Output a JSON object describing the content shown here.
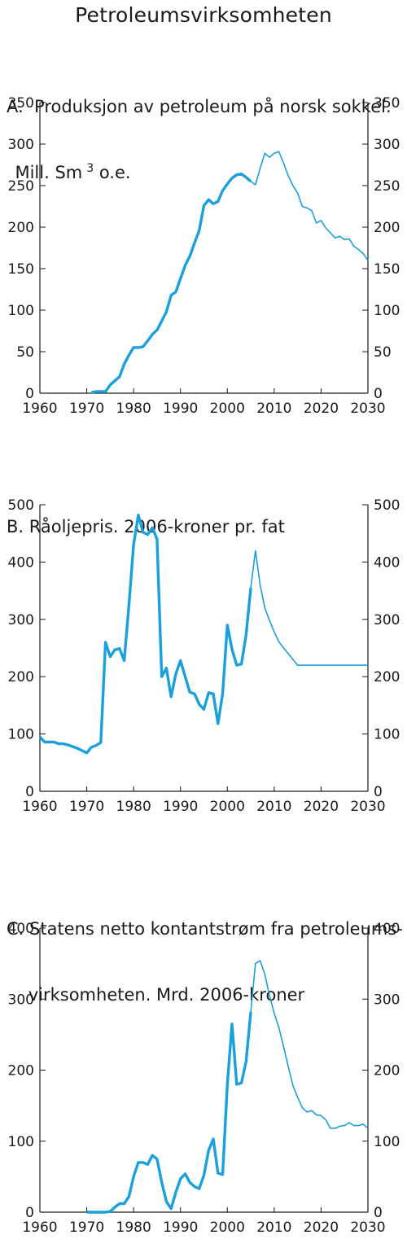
{
  "figure": {
    "title": "Petroleumsvirksomheten"
  },
  "colors": {
    "series": "#1aa0dc",
    "axis": "#1a1a1a"
  },
  "chart_data": [
    {
      "type": "line",
      "title_line1": "A.  Produksjon av petroleum på norsk sokkel.",
      "title_line2": "Mill. Sm",
      "title_sup": "3",
      "title_line2_end": " o.e.",
      "xlim": [
        1960,
        2030
      ],
      "ylim": [
        0,
        350
      ],
      "xticks": [
        1960,
        1970,
        1980,
        1990,
        2000,
        2010,
        2020,
        2030
      ],
      "yticks": [
        0,
        50,
        100,
        150,
        200,
        250,
        300,
        350
      ],
      "series": [
        {
          "style": "actual",
          "x": [
            1971,
            1972,
            1973,
            1974,
            1975,
            1976,
            1977,
            1978,
            1979,
            1980,
            1981,
            1982,
            1983,
            1984,
            1985,
            1986,
            1987,
            1988,
            1989,
            1990,
            1991,
            1992,
            1993,
            1994,
            1995,
            1996,
            1997,
            1998,
            1999,
            2000,
            2001,
            2002,
            2003,
            2004,
            2005
          ],
          "y": [
            1,
            2,
            2,
            2,
            10,
            15,
            20,
            35,
            46,
            55,
            55,
            56,
            63,
            71,
            76,
            87,
            98,
            118,
            122,
            138,
            154,
            165,
            181,
            196,
            226,
            233,
            228,
            231,
            244,
            252,
            259,
            263,
            264,
            260,
            255
          ]
        },
        {
          "style": "projection",
          "x": [
            2005,
            2006,
            2007,
            2008,
            2009,
            2010,
            2011,
            2012,
            2013,
            2014,
            2015,
            2016,
            2017,
            2018,
            2019,
            2020,
            2021,
            2022,
            2023,
            2024,
            2025,
            2026,
            2027,
            2028,
            2029,
            2030
          ],
          "y": [
            255,
            251,
            271,
            289,
            284,
            289,
            291,
            277,
            262,
            250,
            241,
            225,
            223,
            220,
            205,
            208,
            199,
            193,
            187,
            189,
            185,
            186,
            177,
            173,
            168,
            160
          ]
        }
      ]
    },
    {
      "type": "line",
      "title_line1": "B. Råoljepris. 2006-kroner pr. fat",
      "xlim": [
        1960,
        2030
      ],
      "ylim": [
        0,
        500
      ],
      "xticks": [
        1960,
        1970,
        1980,
        1990,
        2000,
        2010,
        2020,
        2030
      ],
      "yticks": [
        0,
        100,
        200,
        300,
        400,
        500
      ],
      "series": [
        {
          "style": "actual",
          "x": [
            1960,
            1961,
            1962,
            1963,
            1964,
            1965,
            1966,
            1967,
            1968,
            1969,
            1970,
            1971,
            1972,
            1973,
            1974,
            1975,
            1976,
            1977,
            1978,
            1979,
            1980,
            1981,
            1982,
            1983,
            1984,
            1985,
            1986,
            1987,
            1988,
            1989,
            1990,
            1991,
            1992,
            1993,
            1994,
            1995,
            1996,
            1997,
            1998,
            1999,
            2000,
            2001,
            2002,
            2003,
            2004,
            2005
          ],
          "y": [
            95,
            86,
            86,
            86,
            83,
            83,
            81,
            78,
            75,
            71,
            67,
            77,
            80,
            85,
            260,
            235,
            247,
            249,
            228,
            325,
            430,
            482,
            452,
            448,
            460,
            440,
            200,
            215,
            165,
            205,
            228,
            200,
            173,
            170,
            152,
            143,
            172,
            170,
            118,
            170,
            290,
            248,
            220,
            222,
            273,
            355
          ]
        },
        {
          "style": "projection",
          "x": [
            2005,
            2006,
            2007,
            2008,
            2009,
            2010,
            2011,
            2012,
            2013,
            2014,
            2015,
            2016,
            2017,
            2018,
            2019,
            2020,
            2021,
            2022,
            2023,
            2024,
            2025,
            2026,
            2027,
            2028,
            2029,
            2030
          ],
          "y": [
            355,
            420,
            360,
            320,
            298,
            278,
            261,
            250,
            240,
            230,
            220,
            220,
            220,
            220,
            220,
            220,
            220,
            220,
            220,
            220,
            220,
            220,
            220,
            220,
            220,
            220
          ]
        }
      ]
    },
    {
      "type": "line",
      "title_line1": "C. Statens netto kontantstrøm fra petroleums-",
      "title_line2": "    virksomheten. Mrd. 2006-kroner",
      "xlim": [
        1960,
        2030
      ],
      "ylim": [
        0,
        400
      ],
      "xticks": [
        1960,
        1970,
        1980,
        1990,
        2000,
        2010,
        2020,
        2030
      ],
      "yticks": [
        0,
        100,
        200,
        300,
        400
      ],
      "series": [
        {
          "style": "actual",
          "x": [
            1970,
            1971,
            1972,
            1973,
            1974,
            1975,
            1976,
            1977,
            1978,
            1979,
            1980,
            1981,
            1982,
            1983,
            1984,
            1985,
            1986,
            1987,
            1988,
            1989,
            1990,
            1991,
            1992,
            1993,
            1994,
            1995,
            1996,
            1997,
            1998,
            1999,
            2000,
            2001,
            2002,
            2003,
            2004,
            2005
          ],
          "y": [
            0,
            0,
            0,
            0,
            0,
            1,
            7,
            12,
            12,
            22,
            50,
            70,
            70,
            67,
            80,
            75,
            42,
            15,
            5,
            28,
            47,
            54,
            42,
            36,
            33,
            52,
            87,
            103,
            55,
            53,
            180,
            265,
            180,
            182,
            212,
            282
          ]
        },
        {
          "style": "projection",
          "x": [
            2005,
            2006,
            2007,
            2008,
            2009,
            2010,
            2011,
            2012,
            2013,
            2014,
            2015,
            2016,
            2017,
            2018,
            2019,
            2020,
            2021,
            2022,
            2023,
            2024,
            2025,
            2026,
            2027,
            2028,
            2029,
            2030
          ],
          "y": [
            282,
            350,
            354,
            335,
            305,
            280,
            260,
            233,
            205,
            178,
            162,
            147,
            141,
            143,
            137,
            136,
            130,
            118,
            118,
            121,
            122,
            126,
            122,
            122,
            124,
            118
          ]
        }
      ]
    }
  ]
}
